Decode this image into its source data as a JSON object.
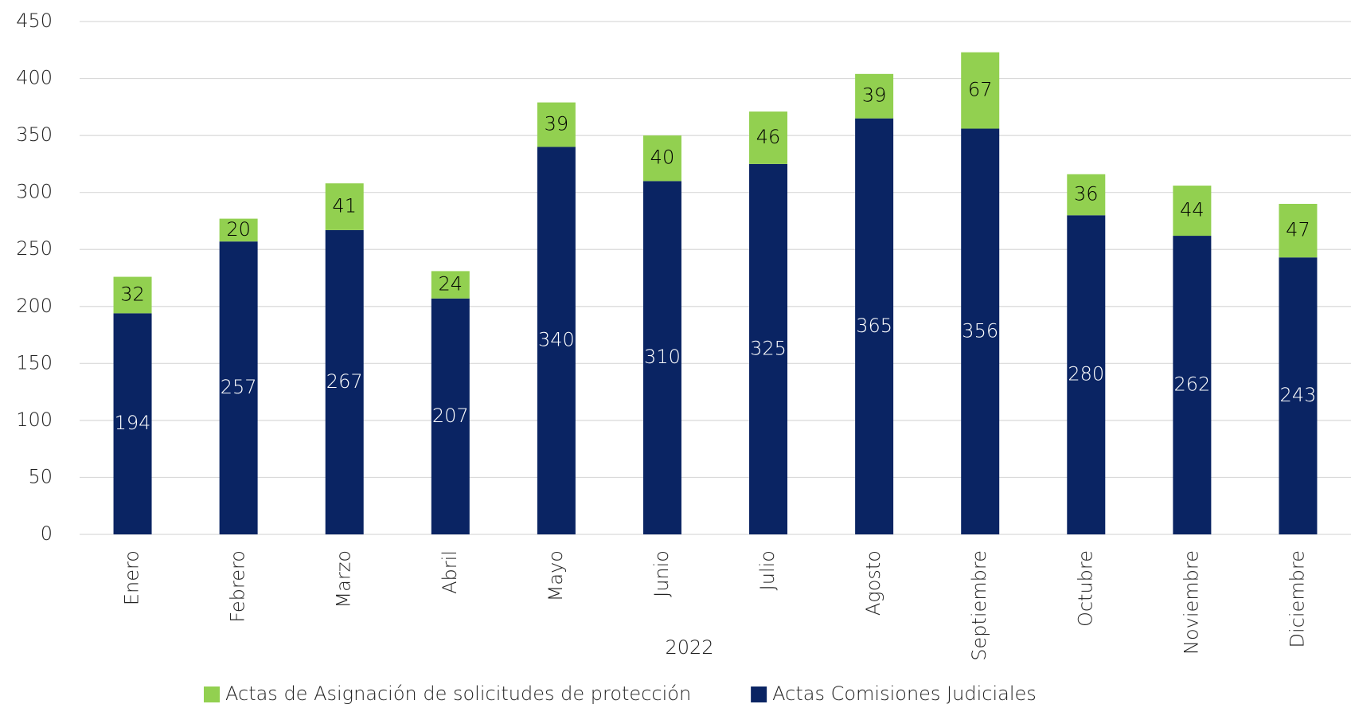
{
  "chart_data": {
    "type": "stacked_bar",
    "x_label": "2022",
    "categories": [
      "Enero",
      "Febrero",
      "Marzo",
      "Abril",
      "Mayo",
      "Junio",
      "Julio",
      "Agosto",
      "Septiembre",
      "Octubre",
      "Noviembre",
      "Diciembre"
    ],
    "series": [
      {
        "name": "Actas de Asignación de solicitudes de protección",
        "color": "#92d050",
        "label_color": "#000000",
        "values": [
          32,
          20,
          41,
          24,
          39,
          40,
          46,
          39,
          67,
          36,
          44,
          47
        ]
      },
      {
        "name": "Actas Comisiones Judiciales",
        "color": "#0a2463",
        "label_color": "#ffffff",
        "values": [
          194,
          257,
          267,
          207,
          340,
          310,
          325,
          365,
          356,
          280,
          262,
          243
        ]
      }
    ],
    "ylim": [
      0,
      450
    ],
    "yticks": [
      0,
      50,
      100,
      150,
      200,
      250,
      300,
      350,
      400,
      450
    ],
    "grid": true
  }
}
